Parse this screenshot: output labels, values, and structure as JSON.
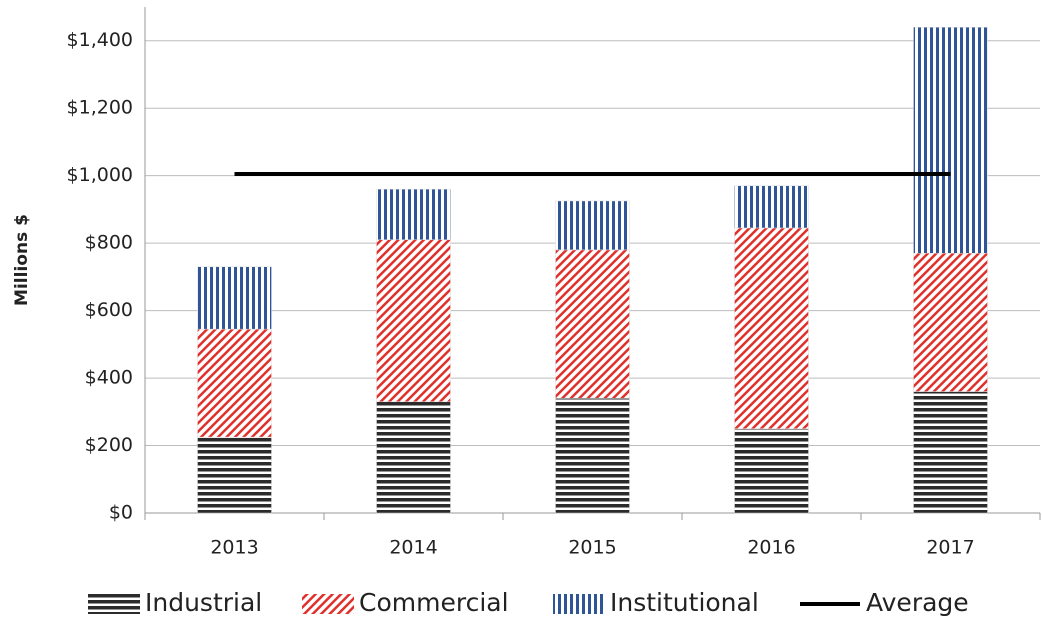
{
  "chart_data": {
    "type": "bar",
    "stacked": true,
    "y_axis_label": "Millions $",
    "categories": [
      "2013",
      "2014",
      "2015",
      "2016",
      "2017"
    ],
    "series": [
      {
        "name": "Industrial",
        "color": "#2b2b2b",
        "pattern": "horizontal",
        "values": [
          225,
          330,
          340,
          250,
          360
        ]
      },
      {
        "name": "Commercial",
        "color": "#e0302c",
        "pattern": "diagonal",
        "values": [
          320,
          480,
          440,
          595,
          410
        ]
      },
      {
        "name": "Institutional",
        "color": "#2f5597",
        "pattern": "vertical",
        "values": [
          185,
          150,
          145,
          125,
          670
        ]
      },
      {
        "name": "Average",
        "color": "#000000",
        "type": "line",
        "values": [
          1005,
          1005,
          1005,
          1005,
          1005
        ]
      }
    ],
    "ylim": [
      0,
      1500
    ],
    "yticks": [
      {
        "value": 0,
        "label": "$0"
      },
      {
        "value": 200,
        "label": "$200"
      },
      {
        "value": 400,
        "label": "$400"
      },
      {
        "value": 600,
        "label": "$600"
      },
      {
        "value": 800,
        "label": "$800"
      },
      {
        "value": 1000,
        "label": "$1,000"
      },
      {
        "value": 1200,
        "label": "$1,200"
      },
      {
        "value": 1400,
        "label": "$1,400"
      }
    ],
    "grid": true,
    "legend": "bottom"
  }
}
